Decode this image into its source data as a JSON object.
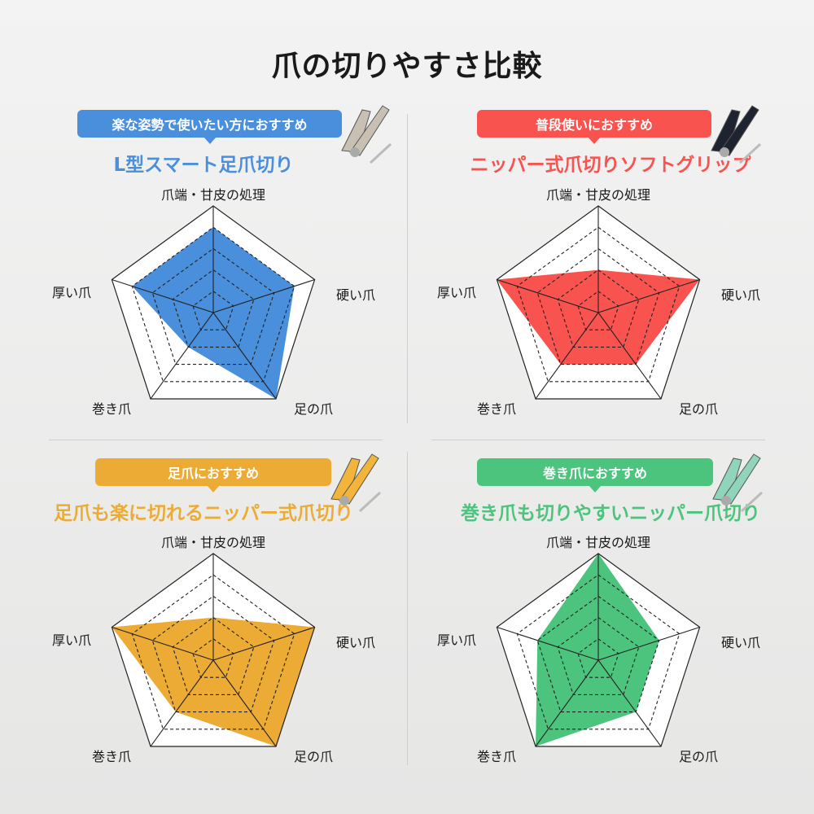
{
  "title": "爪の切りやすさ比較",
  "axes": [
    "爪端・甘皮の処理",
    "硬い爪",
    "足の爪",
    "巻き爪",
    "厚い爪"
  ],
  "chart_data": [
    {
      "type": "radar",
      "badge": "楽な姿勢で使いたい方におすすめ",
      "title": "L型スマート足爪切り",
      "color": "#4a8fdb",
      "categories": [
        "爪端・甘皮の処理",
        "硬い爪",
        "足の爪",
        "巻き爪",
        "厚い爪"
      ],
      "values": [
        4,
        4,
        5,
        2,
        4
      ],
      "range": [
        0,
        5
      ]
    },
    {
      "type": "radar",
      "badge": "普段使いにおすすめ",
      "title": "ニッパー式爪切りソフトグリップ",
      "color": "#f8534e",
      "categories": [
        "爪端・甘皮の処理",
        "硬い爪",
        "足の爪",
        "巻き爪",
        "厚い爪"
      ],
      "values": [
        2,
        5,
        3,
        3,
        5
      ],
      "range": [
        0,
        5
      ]
    },
    {
      "type": "radar",
      "badge": "足爪におすすめ",
      "title": "足爪も楽に切れるニッパー式爪切り",
      "color": "#ebab35",
      "categories": [
        "爪端・甘皮の処理",
        "硬い爪",
        "足の爪",
        "巻き爪",
        "厚い爪"
      ],
      "values": [
        2,
        5,
        5,
        3,
        5
      ],
      "range": [
        0,
        5
      ]
    },
    {
      "type": "radar",
      "badge": "巻き爪におすすめ",
      "title": "巻き爪も切りやすいニッパー爪切り",
      "color": "#4cc47e",
      "categories": [
        "爪端・甘皮の処理",
        "硬い爪",
        "足の爪",
        "巻き爪",
        "厚い爪"
      ],
      "values": [
        5,
        3,
        3,
        5,
        3
      ],
      "range": [
        0,
        5
      ]
    }
  ]
}
